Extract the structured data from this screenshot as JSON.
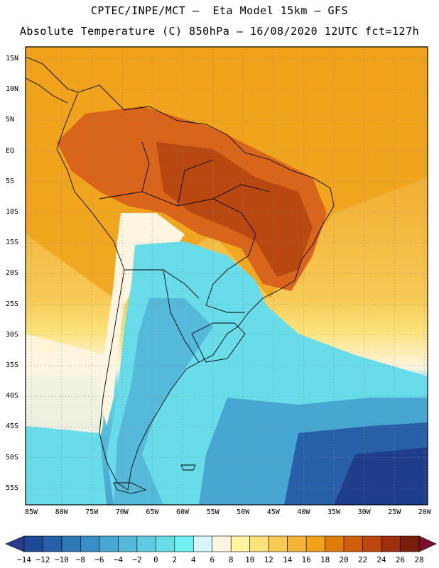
{
  "header": {
    "title_line1": "CPTEC/INPE/MCT –  Eta Model 15km – GFS",
    "title_line2": "Absolute Temperature (C) 850hPa – 16/08/2020 12UTC fct=127h"
  },
  "axes": {
    "lat_labels": [
      "15N",
      "10N",
      "5N",
      "EQ",
      "5S",
      "10S",
      "15S",
      "20S",
      "25S",
      "30S",
      "35S",
      "40S",
      "45S",
      "50S",
      "55S"
    ],
    "lon_labels": [
      "85W",
      "80W",
      "75W",
      "70W",
      "65W",
      "60W",
      "55W",
      "50W",
      "45W",
      "40W",
      "35W",
      "30W",
      "25W",
      "20W"
    ]
  },
  "colorbar": {
    "labels": [
      "-14",
      "-12",
      "-10",
      "-8",
      "-6",
      "-4",
      "-2",
      "0",
      "2",
      "4",
      "6",
      "8",
      "10",
      "12",
      "14",
      "16",
      "18",
      "20",
      "22",
      "24",
      "26",
      "28"
    ],
    "colors": [
      "#1a4a96",
      "#2760a8",
      "#2f78b8",
      "#3a8ec6",
      "#47a6d2",
      "#55b9da",
      "#5fcbe2",
      "#69dcea",
      "#6ff2f4",
      "#d4f6fa",
      "#fdf5e0",
      "#fff4a0",
      "#fce27a",
      "#f7ca55",
      "#f3b43a",
      "#f0a21a",
      "#e07c0c",
      "#cf5f0b",
      "#bd470c",
      "#9e2e0c",
      "#7a1f0e"
    ],
    "under_color": "#2a3b8f",
    "over_color": "#7a0f2e"
  },
  "map": {
    "colors": {
      "warm_ocean": "#f3b43a",
      "trop_ocean": "#f0a21a",
      "hot_land": "#d8651a",
      "very_hot": "#b8480f",
      "cool_andes": "#fdf5e0",
      "cold_cyan": "#69dcea",
      "cold_mid": "#47a6d2",
      "cold_deep": "#2760a8",
      "cold_darkest": "#1e3d8a",
      "coast_line": "#000000",
      "grid_line": "#888888"
    }
  }
}
